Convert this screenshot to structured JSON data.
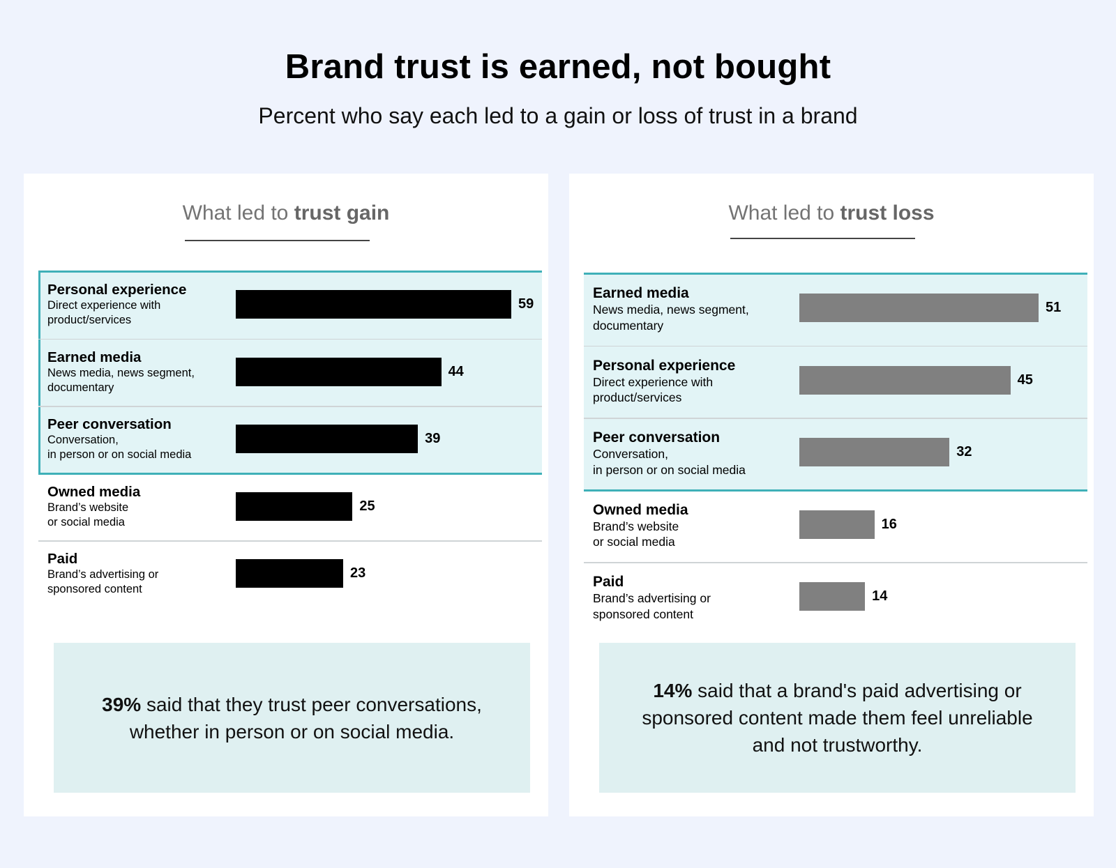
{
  "header": {
    "title": "Brand trust is earned, not bought",
    "subtitle": "Percent who say each led to a gain or loss of trust in a brand"
  },
  "colors": {
    "background": "#eff3fd",
    "panel": "#ffffff",
    "highlight_fill": "#e2f4f6",
    "highlight_border": "#3fb0b8",
    "gain_bar": "#000000",
    "loss_bar": "#808080",
    "callout_fill": "#dff0f1"
  },
  "chart_data": [
    {
      "type": "bar",
      "orientation": "horizontal",
      "title_prefix": "What led to ",
      "title_emphasis": "trust gain",
      "categories": [
        "Personal experience",
        "Earned media",
        "Peer conversation",
        "Owned media",
        "Paid"
      ],
      "descriptions": [
        "Direct experience with\nproduct/services",
        "News media, news segment,\ndocumentary",
        "Conversation,\nin person or on social media",
        "Brand’s website\nor social media",
        "Brand’s advertising or\nsponsored content"
      ],
      "values": [
        59,
        44,
        39,
        25,
        23
      ],
      "highlighted_count": 3,
      "bar_color": "#000000",
      "xlim": [
        0,
        59
      ],
      "callout_bold": "39%",
      "callout_text": " said that they trust peer conversations, whether in person or on social media."
    },
    {
      "type": "bar",
      "orientation": "horizontal",
      "title_prefix": "What led to ",
      "title_emphasis": "trust loss",
      "categories": [
        "Earned media",
        "Personal experience",
        "Peer conversation",
        "Owned media",
        "Paid"
      ],
      "descriptions": [
        "News media, news segment,\ndocumentary",
        "Direct experience with\nproduct/services",
        "Conversation,\nin person or on social media",
        "Brand’s website\nor social media",
        "Brand’s advertising or\nsponsored content"
      ],
      "values": [
        51,
        45,
        32,
        16,
        14
      ],
      "highlighted_count": 3,
      "bar_color": "#808080",
      "xlim": [
        0,
        51
      ],
      "callout_bold": "14%",
      "callout_text": " said that a brand's paid advertising or sponsored content made them feel unreliable and  not trustworthy."
    }
  ]
}
